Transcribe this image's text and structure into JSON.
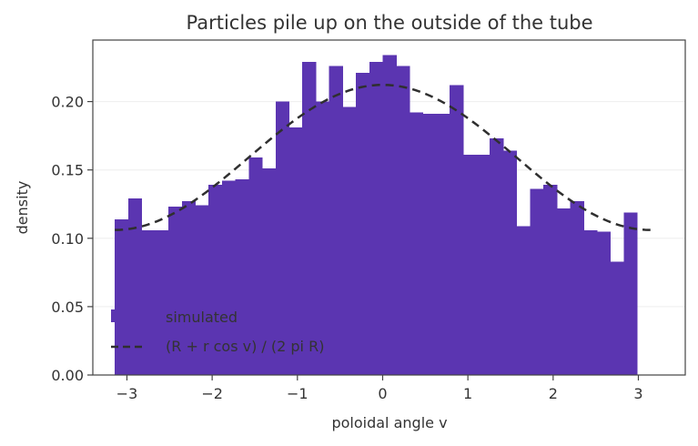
{
  "chart_data": {
    "type": "bar",
    "title": "Particles pile up on the outside of the tube",
    "xlabel": "poloidal angle v",
    "ylabel": "density",
    "xlim": [
      -3.4,
      3.55
    ],
    "ylim": [
      0,
      0.245
    ],
    "xticks": [
      -3,
      -2,
      -1,
      0,
      1,
      2,
      3
    ],
    "xtick_labels": [
      "−3",
      "−2",
      "−1",
      "0",
      "1",
      "2",
      "3"
    ],
    "yticks": [
      0.0,
      0.05,
      0.1,
      0.15,
      0.2
    ],
    "ytick_labels": [
      "0.00",
      "0.05",
      "0.10",
      "0.15",
      "0.20"
    ],
    "grid": true,
    "legend_position": "lower-left",
    "colors": {
      "histogram": "#5b35b1",
      "curve": "#2f2f2f",
      "frame": "#444444",
      "grid": "#eeeeee"
    },
    "series": [
      {
        "name": "simulated",
        "kind": "histogram",
        "bin_start": -3.14159,
        "bin_width": 0.15708,
        "values": [
          0.114,
          0.129,
          0.106,
          0.106,
          0.123,
          0.127,
          0.124,
          0.139,
          0.142,
          0.143,
          0.159,
          0.151,
          0.2,
          0.181,
          0.229,
          0.2,
          0.226,
          0.196,
          0.221,
          0.229,
          0.234,
          0.226,
          0.192,
          0.191,
          0.191,
          0.212,
          0.161,
          0.161,
          0.173,
          0.164,
          0.109,
          0.136,
          0.139,
          0.122,
          0.127,
          0.106,
          0.105,
          0.083,
          0.119
        ]
      },
      {
        "name": "(R + r cos v) / (2 pi R)",
        "kind": "line",
        "style": "dashed",
        "x": [
          -3.14159,
          -2.82743,
          -2.51327,
          -2.19911,
          -1.88496,
          -1.5708,
          -1.25664,
          -0.94248,
          -0.62832,
          -0.31416,
          0.0,
          0.31416,
          0.62832,
          0.94248,
          1.25664,
          1.5708,
          1.88496,
          2.19911,
          2.51327,
          2.82743,
          3.14159
        ],
        "y": [
          0.1061,
          0.1078,
          0.1129,
          0.1206,
          0.1303,
          0.1592,
          0.1783,
          0.193,
          0.2027,
          0.208,
          0.2122,
          0.208,
          0.2027,
          0.193,
          0.1783,
          0.1592,
          0.1303,
          0.1206,
          0.1129,
          0.1078,
          0.1061
        ]
      }
    ]
  }
}
